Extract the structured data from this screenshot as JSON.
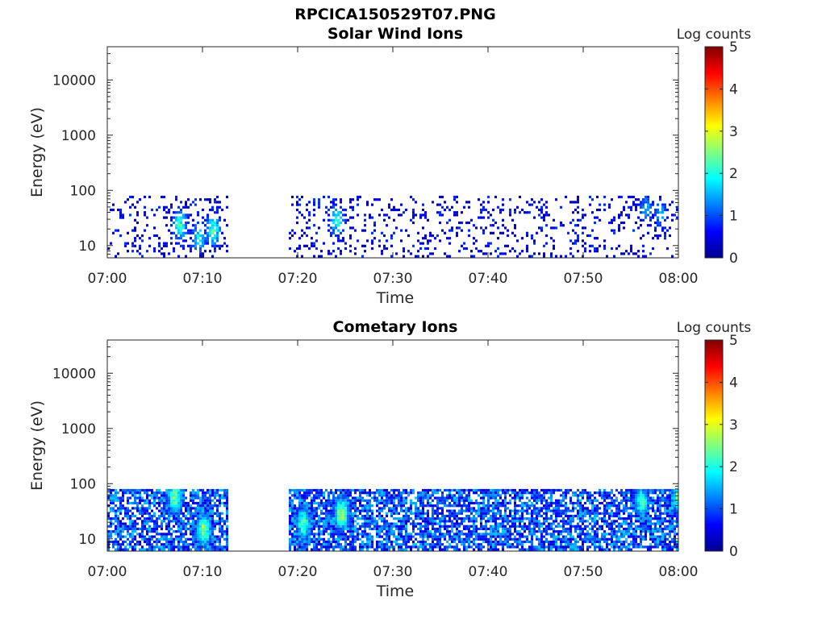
{
  "figure_title": "RPCICA150529T07.PNG",
  "chart_data": [
    {
      "type": "heatmap",
      "title": "Solar Wind Ions",
      "xlabel": "Time",
      "ylabel": "Energy (eV)",
      "x_range": [
        "07:00",
        "08:00"
      ],
      "x_ticks": [
        "07:00",
        "07:10",
        "07:20",
        "07:30",
        "07:40",
        "07:50",
        "08:00"
      ],
      "y_scale": "log",
      "y_range": [
        6,
        40000
      ],
      "y_ticks": [
        "10",
        "100",
        "1000",
        "10000"
      ],
      "y_tick_values": [
        10,
        100,
        1000,
        10000
      ],
      "colorbar": {
        "label": "Log counts",
        "min": 0,
        "max": 5,
        "ticks": [
          "0",
          "1",
          "2",
          "3",
          "4",
          "5"
        ],
        "colormap": "jet"
      },
      "data_gaps": [
        [
          "07:12:40",
          "07:19:00"
        ]
      ],
      "signal_energy_range_eV": [
        6,
        80
      ],
      "hotspots": [
        {
          "time": "07:07:30",
          "energy_eV": 25,
          "log_counts": 2.3
        },
        {
          "time": "07:09:30",
          "energy_eV": 15,
          "log_counts": 2.0
        },
        {
          "time": "07:11:00",
          "energy_eV": 20,
          "log_counts": 2.3
        },
        {
          "time": "07:24:00",
          "energy_eV": 30,
          "log_counts": 2.0
        },
        {
          "time": "07:56:30",
          "energy_eV": 50,
          "log_counts": 1.5
        },
        {
          "time": "07:58:00",
          "energy_eV": 40,
          "log_counts": 1.5
        }
      ]
    },
    {
      "type": "heatmap",
      "title": "Cometary Ions",
      "xlabel": "Time",
      "ylabel": "Energy (eV)",
      "x_range": [
        "07:00",
        "08:00"
      ],
      "x_ticks": [
        "07:00",
        "07:10",
        "07:20",
        "07:30",
        "07:40",
        "07:50",
        "08:00"
      ],
      "y_scale": "log",
      "y_range": [
        6,
        40000
      ],
      "y_ticks": [
        "10",
        "100",
        "1000",
        "10000"
      ],
      "y_tick_values": [
        10,
        100,
        1000,
        10000
      ],
      "colorbar": {
        "label": "Log counts",
        "min": 0,
        "max": 5,
        "ticks": [
          "0",
          "1",
          "2",
          "3",
          "4",
          "5"
        ],
        "colormap": "jet"
      },
      "data_gaps": [
        [
          "07:12:40",
          "07:19:00"
        ]
      ],
      "signal_energy_range_eV": [
        6,
        80
      ],
      "hotspots": [
        {
          "time": "07:07:00",
          "energy_eV": 60,
          "log_counts": 2.7
        },
        {
          "time": "07:10:00",
          "energy_eV": 15,
          "log_counts": 2.8
        },
        {
          "time": "07:20:30",
          "energy_eV": 20,
          "log_counts": 2.5
        },
        {
          "time": "07:24:30",
          "energy_eV": 30,
          "log_counts": 2.8
        },
        {
          "time": "07:56:00",
          "energy_eV": 50,
          "log_counts": 2.3
        },
        {
          "time": "08:00:00",
          "energy_eV": 60,
          "log_counts": 2.6
        }
      ]
    }
  ]
}
